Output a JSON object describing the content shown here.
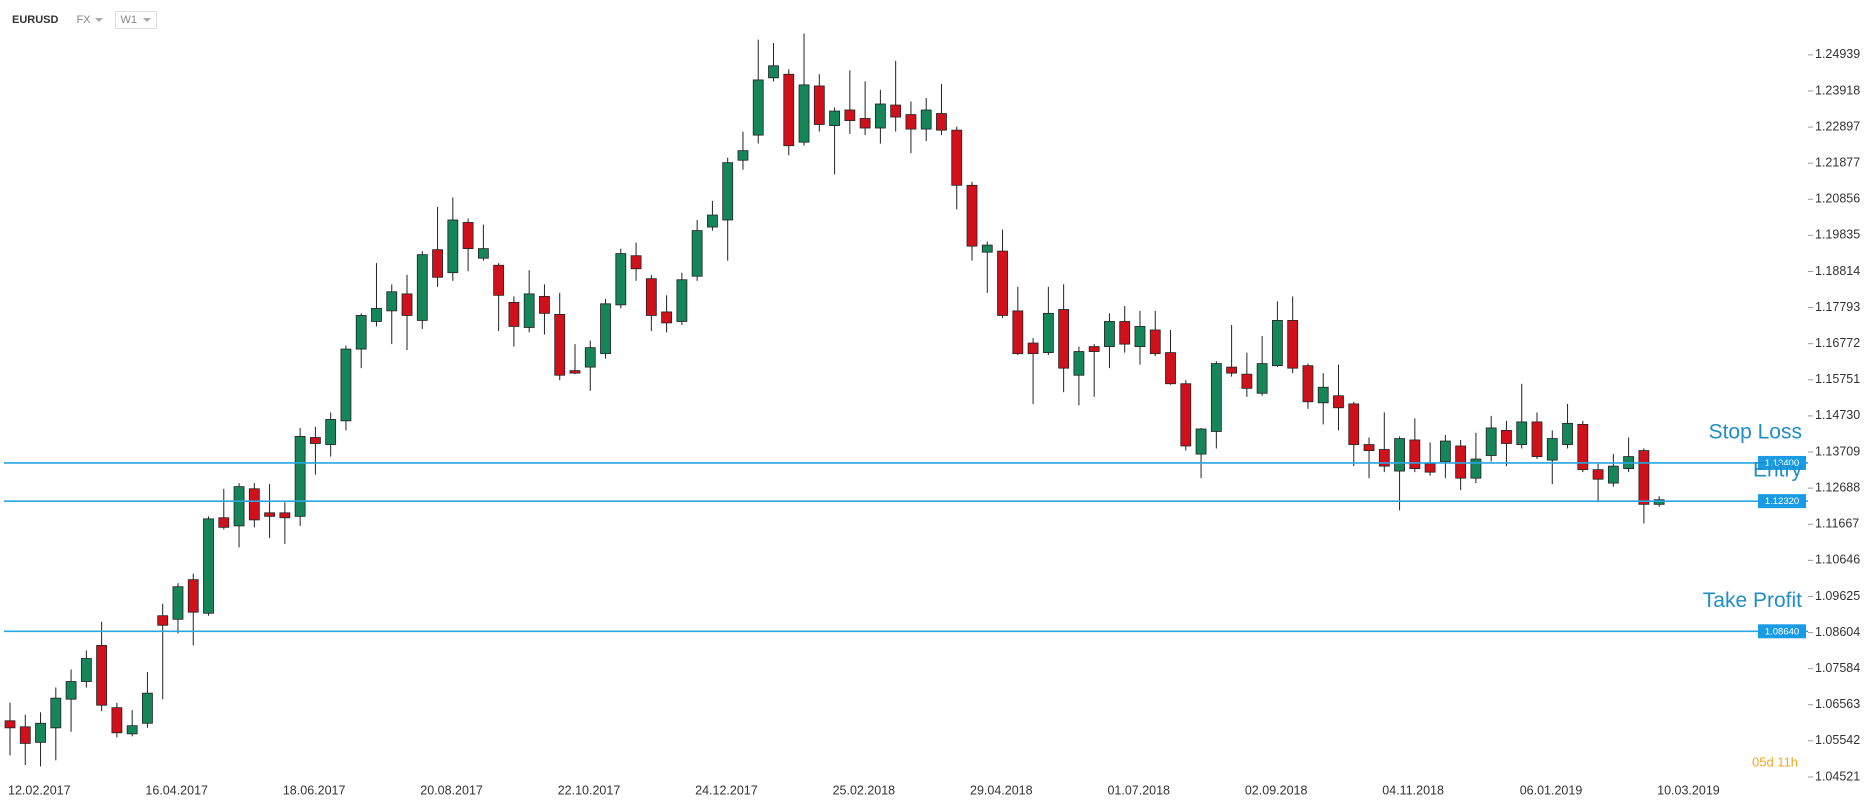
{
  "header": {
    "symbol": "EURUSD",
    "market": "FX",
    "timeframe": "W1"
  },
  "countdown": "05d 11h",
  "chart_data": {
    "type": "candlestick",
    "categories": [
      "12.02.2017",
      null,
      null,
      null,
      null,
      null,
      null,
      null,
      null,
      "16.04.2017",
      null,
      null,
      null,
      null,
      null,
      null,
      null,
      null,
      "18.06.2017",
      null,
      null,
      null,
      null,
      null,
      null,
      null,
      null,
      "20.08.2017",
      null,
      null,
      null,
      null,
      null,
      null,
      null,
      null,
      "22.10.2017",
      null,
      null,
      null,
      null,
      null,
      null,
      null,
      null,
      "24.12.2017",
      null,
      null,
      null,
      null,
      null,
      null,
      null,
      null,
      "25.02.2018",
      null,
      null,
      null,
      null,
      null,
      null,
      null,
      null,
      "29.04.2018",
      null,
      null,
      null,
      null,
      null,
      null,
      null,
      null,
      "01.07.2018",
      null,
      null,
      null,
      null,
      null,
      null,
      null,
      null,
      "02.09.2018",
      null,
      null,
      null,
      null,
      null,
      null,
      null,
      null,
      "04.11.2018",
      null,
      null,
      null,
      null,
      null,
      null,
      null,
      null,
      "06.01.2019",
      null,
      null,
      null,
      null,
      null,
      null,
      null,
      null,
      "10.03.2019"
    ],
    "open": [
      1.0611,
      1.0594,
      1.055,
      1.0591,
      1.0672,
      1.0722,
      1.0824,
      1.0648,
      1.0574,
      1.0604,
      1.0908,
      1.0898,
      1.101,
      1.0915,
      1.1185,
      1.1162,
      1.1267,
      1.1199,
      1.1199,
      1.1189,
      1.1412,
      1.1392,
      1.1459,
      1.1662,
      1.174,
      1.177,
      1.1818,
      1.1743,
      1.1943,
      1.1878,
      1.202,
      1.1919,
      1.1899,
      1.1794,
      1.1723,
      1.1811,
      1.176,
      1.1601,
      1.1611,
      1.1649,
      1.1787,
      1.1926,
      1.1861,
      1.1767,
      1.174,
      1.1868,
      1.2007,
      1.2027,
      1.2196,
      1.2267,
      1.2429,
      1.2439,
      1.2247,
      1.2406,
      1.2294,
      1.2338,
      1.2314,
      1.2287,
      1.2352,
      1.2325,
      1.2284,
      1.2328,
      1.2281,
      1.2125,
      1.1936,
      1.1939,
      1.177,
      1.1679,
      1.1652,
      1.1774,
      1.1588,
      1.1669,
      1.1669,
      1.174,
      1.1669,
      1.1716,
      1.1652,
      1.1564,
      1.1365,
      1.1429,
      1.1611,
      1.1591,
      1.1537,
      1.1615,
      1.1743,
      1.1615,
      1.151,
      1.153,
      1.1507,
      1.1392,
      1.1378,
      1.1317,
      1.1405,
      1.1338,
      1.1344,
      1.1388,
      1.1297,
      1.1361,
      1.1432,
      1.1392,
      1.1456,
      1.1348,
      1.1392,
      1.1449,
      1.1321,
      1.1283,
      1.1324,
      1.1375,
      1.1223
    ],
    "high": [
      1.0662,
      1.0628,
      1.0635,
      1.0705,
      1.0756,
      1.081,
      1.0891,
      1.0662,
      1.0641,
      1.0749,
      1.0942,
      1.1,
      1.1027,
      1.1189,
      1.1267,
      1.1283,
      1.1283,
      1.128,
      1.1229,
      1.1439,
      1.1442,
      1.1483,
      1.1672,
      1.1763,
      1.1905,
      1.1845,
      1.1872,
      1.1939,
      1.2064,
      1.2091,
      1.2031,
      1.2014,
      1.1905,
      1.1811,
      1.1885,
      1.1845,
      1.1821,
      1.1676,
      1.1686,
      1.1804,
      1.1946,
      1.1963,
      1.1872,
      1.1814,
      1.1878,
      1.2027,
      1.2081,
      1.2203,
      1.2277,
      1.2537,
      1.2527,
      1.2453,
      1.2554,
      1.2439,
      1.2345,
      1.245,
      1.2419,
      1.2395,
      1.2477,
      1.2362,
      1.2372,
      1.2412,
      1.2291,
      1.2135,
      1.1966,
      1.2,
      1.1838,
      1.1693,
      1.1838,
      1.1845,
      1.1669,
      1.1676,
      1.1763,
      1.1784,
      1.177,
      1.177,
      1.1716,
      1.1574,
      1.1439,
      1.1628,
      1.173,
      1.1652,
      1.1699,
      1.1797,
      1.1811,
      1.1621,
      1.1594,
      1.1618,
      1.1513,
      1.1412,
      1.1483,
      1.1415,
      1.1466,
      1.1398,
      1.1419,
      1.1405,
      1.1425,
      1.1473,
      1.1459,
      1.1564,
      1.1483,
      1.1432,
      1.1507,
      1.1459,
      1.1338,
      1.1365,
      1.1412,
      1.1381,
      1.1246
    ],
    "low": [
      1.0513,
      1.0486,
      1.0482,
      1.0499,
      1.058,
      1.0705,
      1.0638,
      1.0564,
      1.0567,
      1.0591,
      1.0672,
      1.0858,
      1.0824,
      1.0908,
      1.1152,
      1.1101,
      1.1158,
      1.1128,
      1.1111,
      1.1162,
      1.1307,
      1.1358,
      1.1432,
      1.1608,
      1.1726,
      1.1676,
      1.1659,
      1.1719,
      1.1838,
      1.1855,
      1.1882,
      1.1912,
      1.1713,
      1.1669,
      1.1709,
      1.1703,
      1.1574,
      1.1591,
      1.1544,
      1.1635,
      1.1777,
      1.1855,
      1.1713,
      1.1709,
      1.173,
      1.1855,
      1.1997,
      1.1912,
      1.2169,
      1.2243,
      1.2419,
      1.221,
      1.2237,
      1.2277,
      1.2156,
      1.227,
      1.2267,
      1.2243,
      1.2277,
      1.2216,
      1.225,
      1.2267,
      1.2057,
      1.1912,
      1.1821,
      1.175,
      1.1645,
      1.1507,
      1.1645,
      1.154,
      1.1503,
      1.1527,
      1.1608,
      1.1652,
      1.1618,
      1.1642,
      1.1561,
      1.1375,
      1.1297,
      1.1381,
      1.1584,
      1.1527,
      1.153,
      1.1611,
      1.1594,
      1.1493,
      1.1449,
      1.1432,
      1.1331,
      1.1297,
      1.1314,
      1.1206,
      1.1314,
      1.1304,
      1.1297,
      1.1263,
      1.1283,
      1.1344,
      1.1331,
      1.1381,
      1.1351,
      1.128,
      1.1381,
      1.1314,
      1.1229,
      1.1273,
      1.1314,
      1.1169,
      1.1216
    ],
    "close": [
      1.0591,
      1.0547,
      1.0604,
      1.0675,
      1.0722,
      1.0787,
      1.0655,
      1.0577,
      1.0597,
      1.0689,
      1.0881,
      1.099,
      1.0918,
      1.1182,
      1.1158,
      1.1273,
      1.1179,
      1.1189,
      1.1185,
      1.1415,
      1.1395,
      1.1463,
      1.1662,
      1.1757,
      1.1777,
      1.1824,
      1.1757,
      1.1929,
      1.1865,
      1.2027,
      1.1946,
      1.1946,
      1.1814,
      1.1726,
      1.1818,
      1.1763,
      1.1588,
      1.1594,
      1.1666,
      1.179,
      1.1932,
      1.1889,
      1.1757,
      1.1736,
      1.1858,
      1.1997,
      1.2041,
      1.2189,
      1.2223,
      1.2423,
      1.2463,
      1.2237,
      1.2409,
      1.2297,
      1.2335,
      1.2308,
      1.2287,
      1.2355,
      1.2318,
      1.2284,
      1.2338,
      1.2281,
      1.2125,
      1.1953,
      1.1956,
      1.1757,
      1.1649,
      1.1649,
      1.1763,
      1.1608,
      1.1655,
      1.1655,
      1.174,
      1.1676,
      1.1726,
      1.1649,
      1.1564,
      1.1388,
      1.1436,
      1.1621,
      1.1594,
      1.1551,
      1.1621,
      1.1743,
      1.1608,
      1.1513,
      1.1554,
      1.1496,
      1.1392,
      1.1375,
      1.1331,
      1.1409,
      1.1324,
      1.1314,
      1.1402,
      1.1297,
      1.1351,
      1.1439,
      1.1395,
      1.1456,
      1.1358,
      1.1409,
      1.1452,
      1.1321,
      1.1294,
      1.1331,
      1.1358,
      1.1223,
      1.1236
    ],
    "up_color": "#15855a",
    "down_color": "#d0111b",
    "ylim": [
      1.0452,
      1.2649
    ],
    "yticks": [
      1.24939,
      1.23918,
      1.22897,
      1.21877,
      1.20856,
      1.19835,
      1.18814,
      1.17793,
      1.16772,
      1.15751,
      {
        "value": 1.1473,
        "label": "1.14730"
      },
      1.13709,
      1.12688,
      1.11667,
      1.10646,
      1.09625,
      1.08604,
      1.07584,
      1.06563,
      1.05542,
      1.04521
    ],
    "levels": [
      {
        "name": "Stop Loss",
        "value": 1.134,
        "value_label": "1.13400",
        "color": "#27a6e0"
      },
      {
        "name": "Entry",
        "value": 1.1232,
        "value_label": "1.12320",
        "color": "#27a6e0"
      },
      {
        "name": "Take Profit",
        "value": 1.0864,
        "value_label": "1.08640",
        "color": "#27a6e0"
      }
    ]
  }
}
